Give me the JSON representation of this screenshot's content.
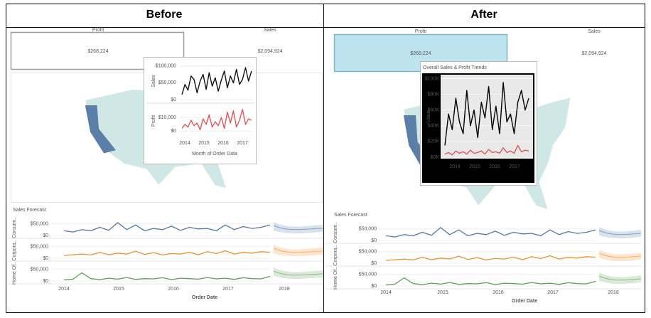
{
  "headers": [
    "Before",
    "After"
  ],
  "before": {
    "kpis": [
      {
        "label": "Profit",
        "value": "$268,224"
      },
      {
        "label": "Sales",
        "value": "$2,094,924"
      }
    ],
    "tooltip": {
      "x_label": "Month of Order Data",
      "xticks": [
        "2014",
        "2015",
        "2016",
        "2017"
      ],
      "sales": {
        "axis_label": "Sales",
        "ylim": [
          0,
          110000
        ],
        "yticks": [
          {
            "value": 0,
            "label": "$0"
          },
          {
            "value": 50000,
            "label": "$50,000"
          },
          {
            "value": 100000,
            "label": "$100,000"
          }
        ],
        "color": "#111111",
        "values": [
          15000,
          45000,
          28000,
          70000,
          60000,
          20000,
          55000,
          75000,
          30000,
          80000,
          40000,
          65000,
          25000,
          58000,
          85000,
          35000,
          70000,
          50000,
          90000,
          45000,
          60000,
          95000,
          55000,
          85000
        ]
      },
      "profit": {
        "axis_label": "Profit",
        "ylim": [
          -3000,
          18000
        ],
        "yticks": [
          {
            "value": 0,
            "label": "$0"
          },
          {
            "value": 10000,
            "label": "$10,000"
          }
        ],
        "color": "#e15759",
        "values": [
          2000,
          5000,
          3000,
          8000,
          4000,
          6000,
          1000,
          9000,
          5000,
          12000,
          3000,
          7000,
          4000,
          10000,
          2000,
          14000,
          6000,
          15000,
          3000,
          8000,
          16000,
          5000,
          9000,
          8000
        ]
      }
    },
    "forecast": {
      "title": "Sales Forecast",
      "x_label": "Order Date",
      "xticks": [
        "2014",
        "2015",
        "2016",
        "2017",
        "2018"
      ],
      "ylim": [
        0,
        70000
      ],
      "yticks": [
        {
          "value": 0,
          "label": "$0"
        },
        {
          "value": 50000,
          "label": "$50,000"
        }
      ],
      "series": [
        {
          "name": "Consum..",
          "color": "#4e79a7",
          "values": [
            20000,
            15000,
            25000,
            20000,
            35000,
            22000,
            55000,
            25000,
            45000,
            20000,
            30000,
            25000,
            40000,
            22000,
            35000,
            28000,
            30000,
            20000,
            45000,
            25000,
            38000,
            30000,
            35000,
            45000
          ]
        },
        {
          "name": "Corpora..",
          "color": "#f28e2b",
          "values": [
            12000,
            15000,
            18000,
            14000,
            25000,
            15000,
            22000,
            18000,
            30000,
            16000,
            24000,
            14000,
            20000,
            18000,
            26000,
            15000,
            28000,
            20000,
            32000,
            18000,
            25000,
            22000,
            28000,
            26000
          ]
        },
        {
          "name": "Home Of..",
          "color": "#59a14f",
          "values": [
            5000,
            8000,
            35000,
            10000,
            6000,
            12000,
            8000,
            15000,
            7000,
            10000,
            9000,
            14000,
            6000,
            12000,
            10000,
            8000,
            15000,
            9000,
            12000,
            7000,
            14000,
            10000,
            9000,
            20000
          ]
        }
      ]
    }
  },
  "after": {
    "kpis": [
      {
        "label": "Profit",
        "value": "$268,224"
      },
      {
        "label": "Sales",
        "value": "$2,094,924"
      }
    ],
    "tooltip": {
      "title": "Overall Sales & Profit Trends",
      "y_label": "Value",
      "xticks": [
        "2014",
        "2015",
        "2016",
        "2017"
      ],
      "ylim": [
        0,
        105
      ],
      "yticks": [
        {
          "value": 0,
          "label": "$0K"
        },
        {
          "value": 20,
          "label": "$20K"
        },
        {
          "value": 40,
          "label": "$40K"
        },
        {
          "value": 60,
          "label": "$60K"
        },
        {
          "value": 80,
          "label": "$80K"
        },
        {
          "value": 100,
          "label": "$100K"
        }
      ],
      "series": [
        {
          "name": "Sales",
          "color": "#000000",
          "values": [
            15,
            55,
            35,
            75,
            45,
            30,
            85,
            40,
            60,
            25,
            70,
            50,
            90,
            35,
            65,
            30,
            95,
            45,
            55,
            30,
            70,
            85,
            60,
            75
          ]
        },
        {
          "name": "Profit",
          "color": "#e15759",
          "values": [
            4,
            6,
            3,
            8,
            5,
            7,
            4,
            9,
            5,
            6,
            8,
            4,
            10,
            6,
            7,
            5,
            12,
            6,
            8,
            5,
            15,
            7,
            9,
            8
          ]
        }
      ]
    },
    "forecast": {
      "title": "Sales Forecast",
      "x_label": "Order Date",
      "xticks": [
        "2014",
        "2015",
        "2016",
        "2017",
        "2018"
      ],
      "ylim": [
        0,
        70000
      ],
      "yticks": [
        {
          "value": 0,
          "label": "$0"
        },
        {
          "value": 50000,
          "label": "$50,000"
        }
      ],
      "series": [
        {
          "name": "Consum..",
          "color": "#4e79a7",
          "values": [
            20000,
            15000,
            25000,
            20000,
            35000,
            22000,
            55000,
            25000,
            45000,
            20000,
            30000,
            25000,
            40000,
            22000,
            35000,
            28000,
            30000,
            20000,
            45000,
            25000,
            38000,
            30000,
            35000,
            45000
          ]
        },
        {
          "name": "Corpora..",
          "color": "#f28e2b",
          "values": [
            12000,
            15000,
            18000,
            14000,
            25000,
            15000,
            22000,
            18000,
            30000,
            16000,
            24000,
            14000,
            20000,
            18000,
            26000,
            15000,
            28000,
            20000,
            32000,
            18000,
            25000,
            22000,
            28000,
            26000
          ]
        },
        {
          "name": "Home Of..",
          "color": "#59a14f",
          "values": [
            5000,
            8000,
            35000,
            10000,
            6000,
            12000,
            8000,
            15000,
            7000,
            10000,
            9000,
            14000,
            6000,
            12000,
            10000,
            8000,
            15000,
            9000,
            12000,
            7000,
            14000,
            10000,
            9000,
            20000
          ]
        }
      ]
    }
  }
}
